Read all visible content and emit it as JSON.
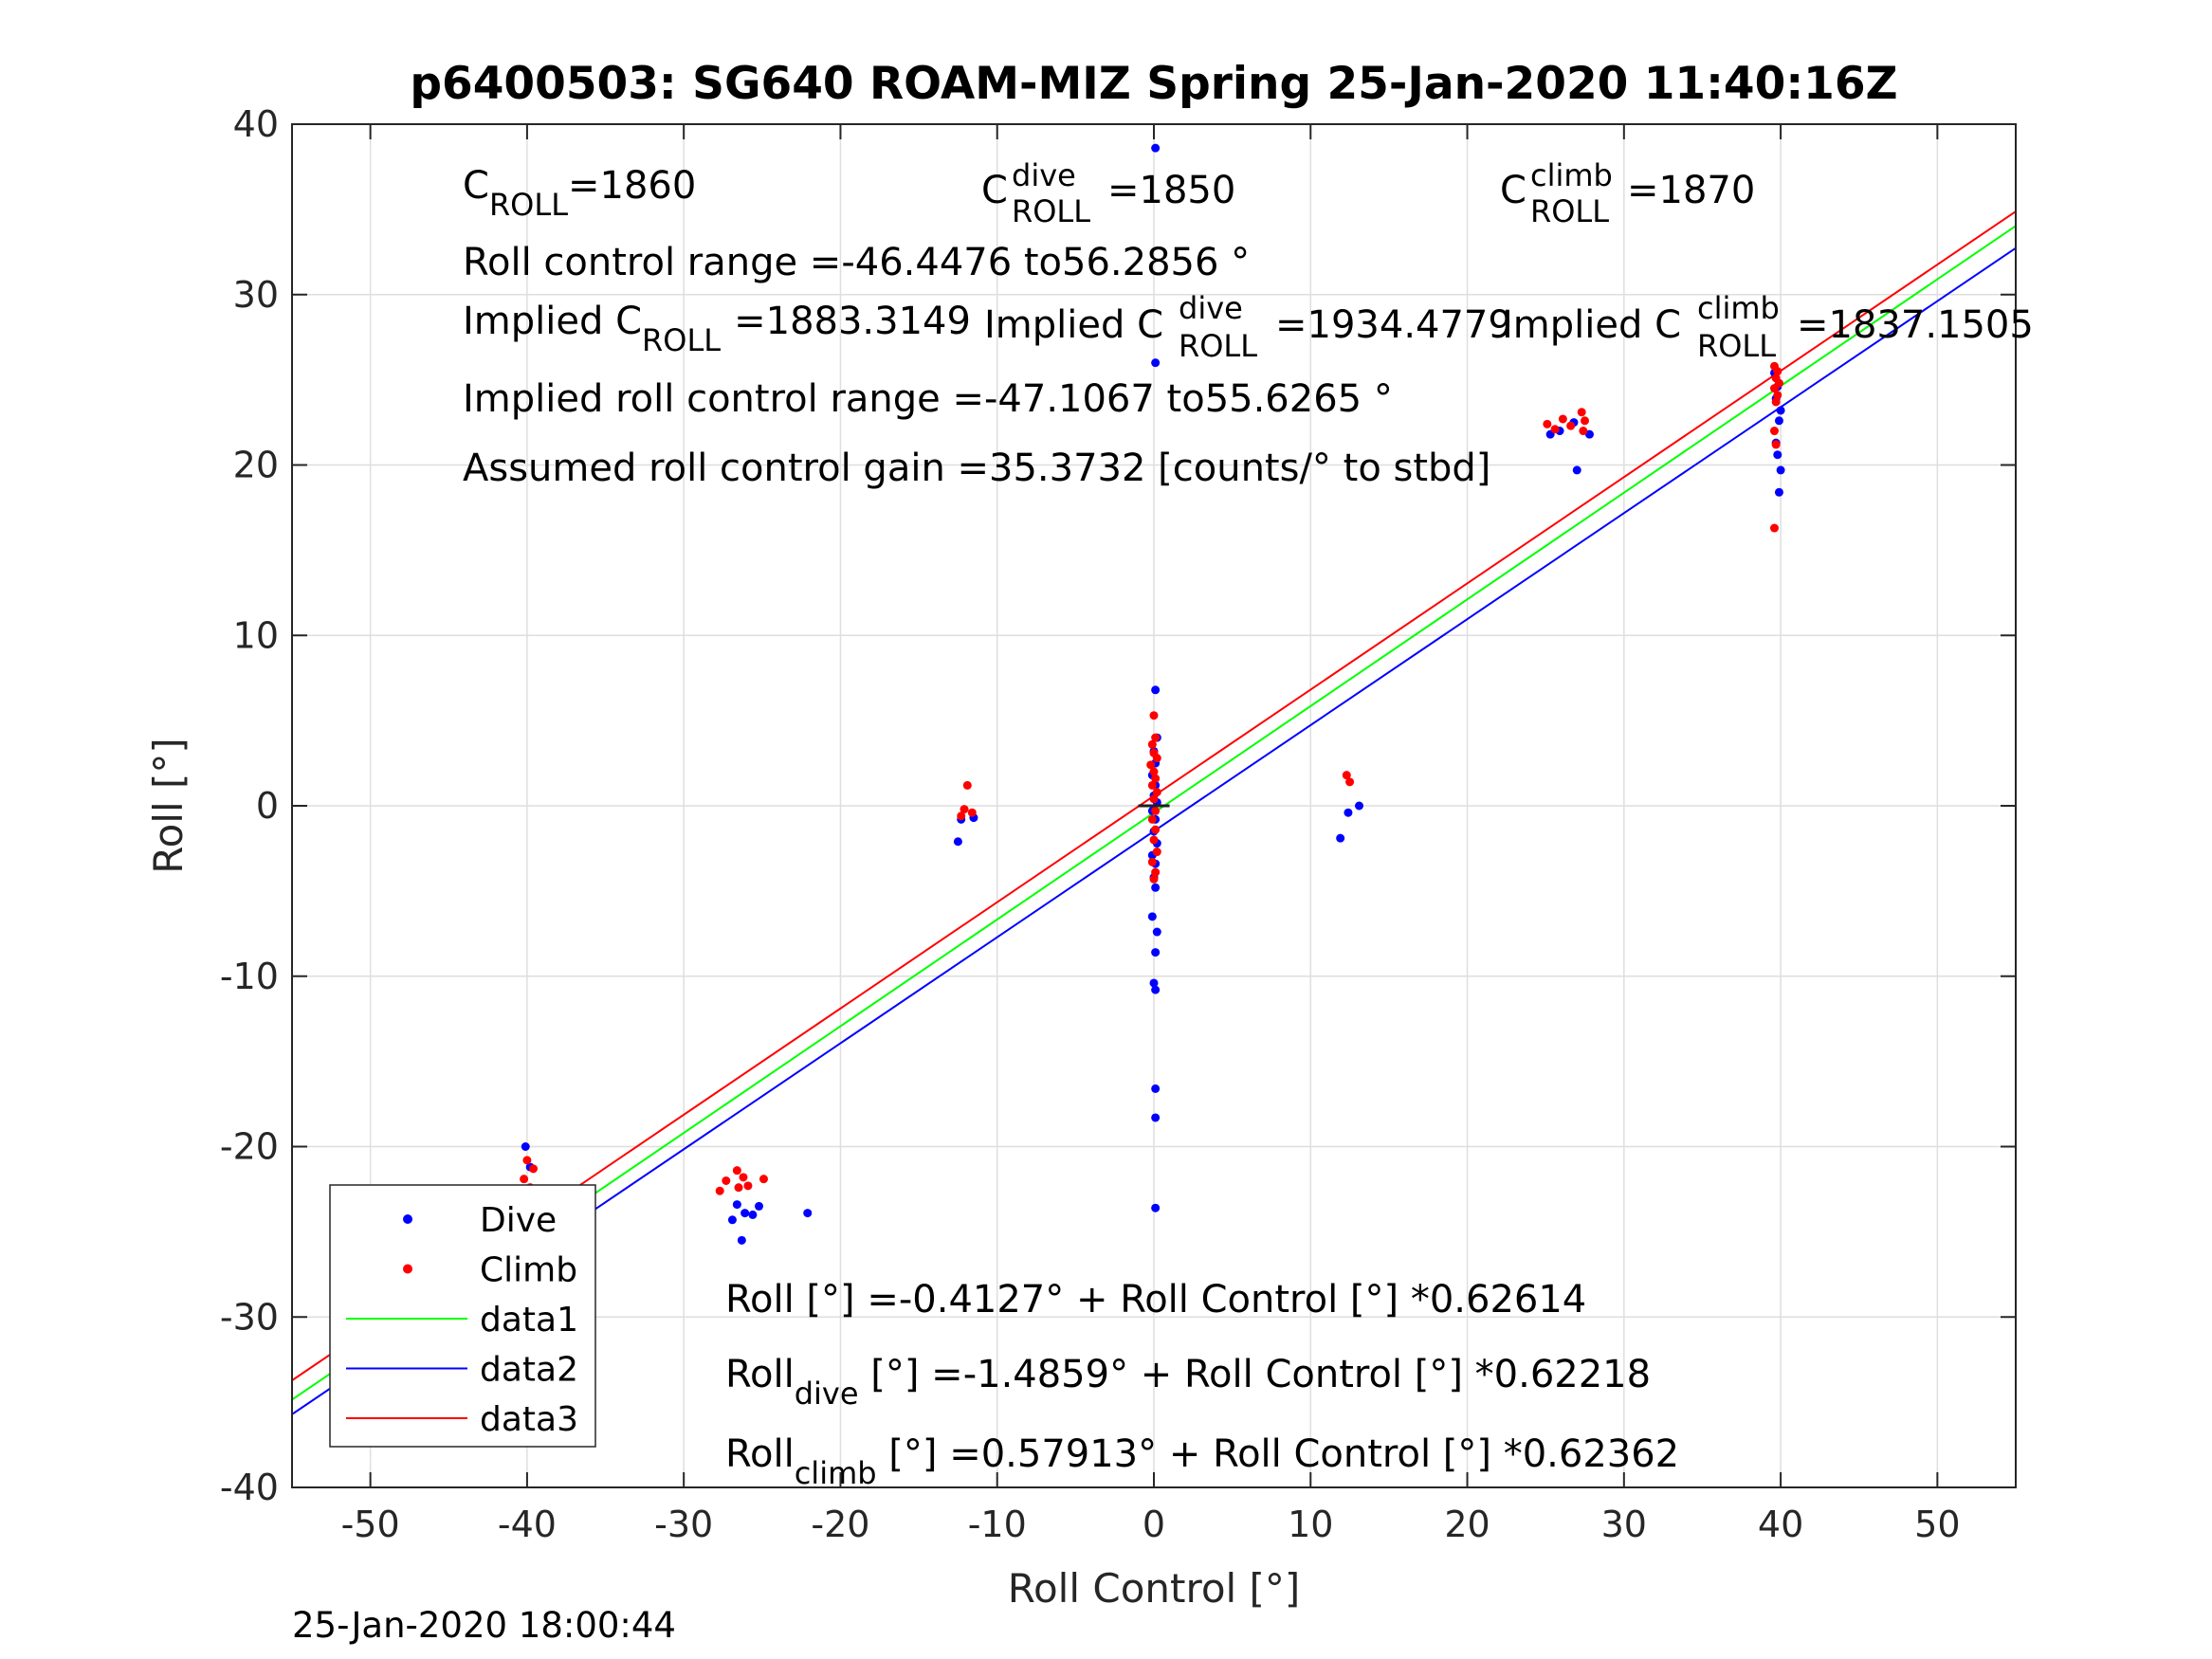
{
  "chart_data": {
    "type": "scatter",
    "title": "p6400503: SG640 ROAM-MIZ Spring 25-Jan-2020 11:40:16Z",
    "xlabel": "Roll Control [°]",
    "ylabel": "Roll [°]",
    "xlim": [
      -55,
      55
    ],
    "ylim": [
      -40,
      40
    ],
    "xticks": [
      -50,
      -40,
      -30,
      -20,
      -10,
      0,
      10,
      20,
      30,
      40,
      50
    ],
    "yticks": [
      -40,
      -30,
      -20,
      -10,
      0,
      10,
      20,
      30,
      40
    ],
    "grid": true,
    "legend_position": "bottom-left",
    "legend": [
      {
        "label": "Dive",
        "color": "#0000ff",
        "marker": "dot"
      },
      {
        "label": "Climb",
        "color": "#ff0000",
        "marker": "dot"
      },
      {
        "label": "data1",
        "color": "#00ff00",
        "marker": "line"
      },
      {
        "label": "data2",
        "color": "#0000ff",
        "marker": "line"
      },
      {
        "label": "data3",
        "color": "#ff0000",
        "marker": "line"
      }
    ],
    "series": [
      {
        "name": "Dive",
        "color": "#0000ff",
        "points": [
          [
            0.1,
            38.6
          ],
          [
            0.1,
            26.0
          ],
          [
            0.1,
            6.8
          ],
          [
            0.2,
            4.0
          ],
          [
            0.0,
            3.2
          ],
          [
            0.1,
            2.5
          ],
          [
            -0.1,
            1.8
          ],
          [
            0.1,
            1.2
          ],
          [
            0.0,
            0.6
          ],
          [
            0.2,
            0.2
          ],
          [
            -0.1,
            -0.3
          ],
          [
            0.1,
            -0.8
          ],
          [
            0.0,
            -1.5
          ],
          [
            0.2,
            -2.2
          ],
          [
            -0.1,
            -2.9
          ],
          [
            0.1,
            -3.4
          ],
          [
            0.0,
            -4.2
          ],
          [
            0.1,
            -4.8
          ],
          [
            -0.1,
            -6.5
          ],
          [
            0.2,
            -7.4
          ],
          [
            0.1,
            -8.6
          ],
          [
            0.0,
            -10.4
          ],
          [
            0.1,
            -10.8
          ],
          [
            0.1,
            -16.6
          ],
          [
            0.1,
            -18.3
          ],
          [
            0.1,
            -23.6
          ],
          [
            -12.5,
            -2.1
          ],
          [
            -12.3,
            -0.8
          ],
          [
            -11.5,
            -0.7
          ],
          [
            11.9,
            -1.9
          ],
          [
            12.4,
            -0.4
          ],
          [
            13.1,
            0.0
          ],
          [
            -40.1,
            -20.0
          ],
          [
            -39.8,
            -21.2
          ],
          [
            -40.0,
            -22.8
          ],
          [
            -39.7,
            -24.1
          ],
          [
            -40.2,
            -25.0
          ],
          [
            -39.9,
            -25.6
          ],
          [
            -40.0,
            -26.0
          ],
          [
            -39.6,
            -26.5
          ],
          [
            -40.1,
            -27.0
          ],
          [
            -39.8,
            -27.4
          ],
          [
            -26.6,
            -23.4
          ],
          [
            -26.1,
            -23.9
          ],
          [
            -26.9,
            -24.3
          ],
          [
            -25.6,
            -24.0
          ],
          [
            -25.2,
            -23.5
          ],
          [
            -26.3,
            -25.5
          ],
          [
            -22.1,
            -23.9
          ],
          [
            25.3,
            21.8
          ],
          [
            25.9,
            22.0
          ],
          [
            26.8,
            22.5
          ],
          [
            27.8,
            21.8
          ],
          [
            27.0,
            19.7
          ],
          [
            39.6,
            25.4
          ],
          [
            39.8,
            24.6
          ],
          [
            39.7,
            23.9
          ],
          [
            40.0,
            23.2
          ],
          [
            39.9,
            22.6
          ],
          [
            39.7,
            21.3
          ],
          [
            39.8,
            20.6
          ],
          [
            40.0,
            19.7
          ],
          [
            39.9,
            18.4
          ]
        ]
      },
      {
        "name": "Climb",
        "color": "#ff0000",
        "points": [
          [
            0.0,
            5.3
          ],
          [
            0.1,
            4.0
          ],
          [
            -0.1,
            3.6
          ],
          [
            0.0,
            3.1
          ],
          [
            0.2,
            2.8
          ],
          [
            -0.2,
            2.4
          ],
          [
            0.0,
            2.0
          ],
          [
            0.1,
            1.6
          ],
          [
            -0.1,
            1.2
          ],
          [
            0.2,
            0.8
          ],
          [
            0.0,
            0.4
          ],
          [
            0.1,
            -0.3
          ],
          [
            -0.1,
            -0.8
          ],
          [
            0.1,
            -1.4
          ],
          [
            0.0,
            -2.0
          ],
          [
            0.2,
            -2.7
          ],
          [
            -0.1,
            -3.3
          ],
          [
            0.1,
            -3.9
          ],
          [
            0.0,
            -4.3
          ],
          [
            -11.9,
            1.2
          ],
          [
            -12.1,
            -0.2
          ],
          [
            -11.6,
            -0.4
          ],
          [
            -12.3,
            -0.6
          ],
          [
            12.3,
            1.8
          ],
          [
            12.5,
            1.4
          ],
          [
            -40.0,
            -20.8
          ],
          [
            -39.6,
            -21.3
          ],
          [
            -40.2,
            -21.9
          ],
          [
            -39.8,
            -22.4
          ],
          [
            -40.1,
            -23.1
          ],
          [
            -39.7,
            -23.6
          ],
          [
            -40.0,
            -24.2
          ],
          [
            -39.5,
            -24.8
          ],
          [
            -40.2,
            -25.4
          ],
          [
            -39.9,
            -26.1
          ],
          [
            -40.0,
            -26.8
          ],
          [
            -39.7,
            -27.4
          ],
          [
            -27.7,
            -22.6
          ],
          [
            -27.3,
            -22.0
          ],
          [
            -26.6,
            -21.4
          ],
          [
            -26.2,
            -21.8
          ],
          [
            -25.9,
            -22.3
          ],
          [
            -26.5,
            -22.4
          ],
          [
            -24.9,
            -21.9
          ],
          [
            25.1,
            22.4
          ],
          [
            25.6,
            22.1
          ],
          [
            26.1,
            22.7
          ],
          [
            26.6,
            22.3
          ],
          [
            27.3,
            23.1
          ],
          [
            27.5,
            22.6
          ],
          [
            27.4,
            22.0
          ],
          [
            39.6,
            25.8
          ],
          [
            39.8,
            25.5
          ],
          [
            39.7,
            25.1
          ],
          [
            39.9,
            24.8
          ],
          [
            39.6,
            24.5
          ],
          [
            39.8,
            24.1
          ],
          [
            39.7,
            23.7
          ],
          [
            39.6,
            22.0
          ],
          [
            39.7,
            21.2
          ],
          [
            39.6,
            16.3
          ]
        ]
      },
      {
        "name": "data1",
        "type": "line",
        "color": "#00ff00",
        "x": [
          -55,
          55
        ],
        "y": [
          -34.85,
          34.03
        ]
      },
      {
        "name": "data2",
        "type": "line",
        "color": "#0000ff",
        "x": [
          -55,
          55
        ],
        "y": [
          -35.71,
          32.73
        ]
      },
      {
        "name": "data3",
        "type": "line",
        "color": "#ff0000",
        "x": [
          -55,
          55
        ],
        "y": [
          -33.72,
          34.88
        ]
      }
    ],
    "annotations": {
      "c_roll": {
        "main": "C",
        "sub": "ROLL",
        "rest": "=1860"
      },
      "c_roll_dive": {
        "main": "C",
        "sup": "dive",
        "sub": "ROLL",
        "rest": "=1850"
      },
      "c_roll_climb": {
        "main": "C",
        "sup": "climb",
        "sub": "ROLL",
        "rest": "=1870"
      },
      "roll_control_range": "Roll control range =-46.4476 to56.2856 °",
      "implied_c_roll": {
        "main": "Implied C",
        "sub": "ROLL",
        "rest": "=1883.3149"
      },
      "implied_c_roll_dive": {
        "main": "Implied C",
        "sup": "dive",
        "sub": "ROLL",
        "rest": "=1934.4779"
      },
      "implied_c_roll_climb": {
        "main": "Implied C",
        "sup": "climb",
        "sub": "ROLL",
        "rest": "=1837.1505"
      },
      "implied_range": "Implied roll control range =-47.1067 to55.6265 °",
      "assumed_gain": "Assumed roll control gain =35.3732 [counts/° to stbd]",
      "fit_all": "Roll [°] =-0.4127° + Roll Control [°] *0.62614",
      "fit_dive": {
        "main": "Roll",
        "sub": "dive",
        "rest": " [°] =-1.4859° + Roll Control [°] *0.62218"
      },
      "fit_climb": {
        "main": "Roll",
        "sub": "climb",
        "rest": " [°] =0.57913° + Roll Control [°] *0.62362"
      }
    }
  },
  "timestamp": "25-Jan-2020 18:00:44"
}
